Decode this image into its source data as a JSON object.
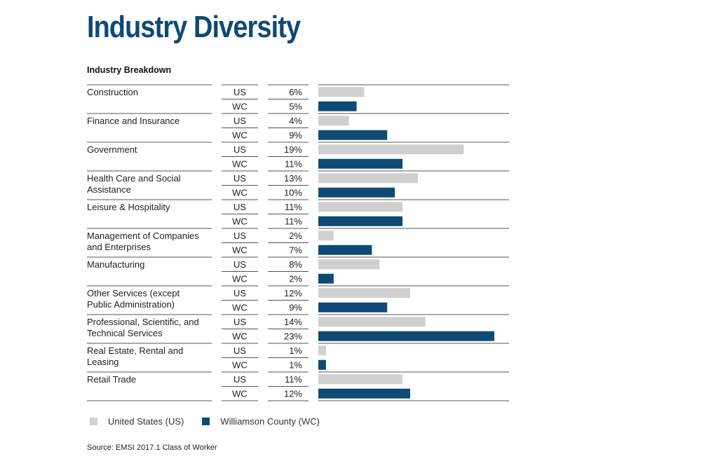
{
  "colors": {
    "us": "#d0d0d0",
    "wc": "#0e4a75",
    "title": "#0e4a75",
    "rule": "#555555"
  },
  "chart_data": {
    "type": "bar",
    "orientation": "horizontal",
    "title": "Industry Diversity",
    "subtitle": "Industry Breakdown",
    "categories": [
      "Construction",
      "Finance and Insurance",
      "Government",
      "Health Care and Social Assistance",
      "Leisure & Hospitality",
      "Management of Companies and Enterprises",
      "Manufacturing",
      "Other Services (except Public Administration)",
      "Professional, Scientific, and Technical Services",
      "Real Estate, Rental and Leasing",
      "Retail Trade"
    ],
    "category_lines": [
      [
        "Construction"
      ],
      [
        "Finance and Insurance"
      ],
      [
        "Government"
      ],
      [
        "Health Care and Social",
        "Assistance"
      ],
      [
        "Leisure & Hospitality"
      ],
      [
        "Management of Companies",
        "and Enterprises"
      ],
      [
        "Manufacturing"
      ],
      [
        "Other Services (except",
        "Public Administration)"
      ],
      [
        "Professional, Scientific, and",
        "Technical Services"
      ],
      [
        "Real Estate, Rental and",
        "Leasing"
      ],
      [
        "Retail Trade"
      ]
    ],
    "series": [
      {
        "name": "United States (US)",
        "code": "US",
        "values": [
          6,
          4,
          19,
          13,
          11,
          2,
          8,
          12,
          14,
          1,
          11
        ]
      },
      {
        "name": "Williamson County (WC)",
        "code": "WC",
        "values": [
          5,
          9,
          11,
          10,
          11,
          7,
          2,
          9,
          23,
          1,
          12
        ]
      }
    ],
    "unit": "%",
    "xlim": [
      0,
      23
    ],
    "legend": "bottom-left",
    "grid": false
  },
  "source": "Source: EMSI 2017.1 Class of Worker"
}
